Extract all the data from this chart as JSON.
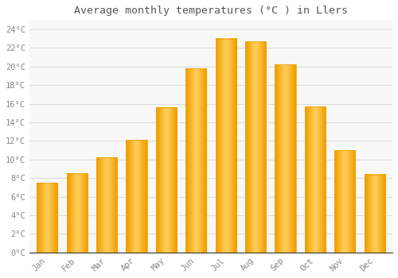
{
  "title": "Average monthly temperatures (°C ) in Llers",
  "months": [
    "Jan",
    "Feb",
    "Mar",
    "Apr",
    "May",
    "Jun",
    "Jul",
    "Aug",
    "Sep",
    "Oct",
    "Nov",
    "Dec"
  ],
  "values": [
    7.5,
    8.5,
    10.2,
    12.1,
    15.6,
    19.8,
    23.0,
    22.7,
    20.2,
    15.7,
    11.0,
    8.4
  ],
  "bar_color_center": "#FFD060",
  "bar_color_edge": "#F0A000",
  "background_color": "#FFFFFF",
  "plot_bg_color": "#F8F8F8",
  "grid_color": "#DDDDDD",
  "title_color": "#555555",
  "tick_label_color": "#888888",
  "axis_color": "#333333",
  "ylim": [
    0,
    25
  ],
  "yticks": [
    0,
    2,
    4,
    6,
    8,
    10,
    12,
    14,
    16,
    18,
    20,
    22,
    24
  ],
  "bar_width": 0.7
}
